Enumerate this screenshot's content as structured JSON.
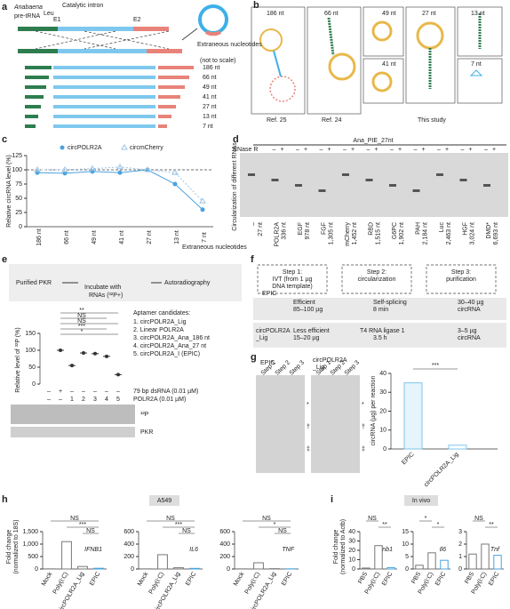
{
  "panel_a": {
    "label": "a",
    "species": "Anabaena",
    "pre_trna": "pre-tRNA",
    "superscript": "Leu",
    "intron": "Catalytic intron",
    "e1": "E1",
    "e2": "E2",
    "extraneous": "Extraneous nucleotides",
    "note": "(not to scale)",
    "lengths": [
      "186 nt",
      "66 nt",
      "49 nt",
      "41 nt",
      "27 nt",
      "13 nt",
      "7 nt"
    ]
  },
  "panel_b": {
    "label": "b",
    "lengths": [
      "186 nt",
      "66 nt",
      "49 nt",
      "41 nt",
      "27 nt",
      "13 nt",
      "7 nt"
    ],
    "refs": [
      "Ref. 25",
      "Ref. 24",
      "This study"
    ]
  },
  "panel_c": {
    "label": "c",
    "chart_data": {
      "type": "line",
      "ylabel": "Relative circRNA level (%)",
      "xnote": "Extraneous nucleotides",
      "categories": [
        "186 nt",
        "66 nt",
        "49 nt",
        "41 nt",
        "27 nt",
        "13 nt",
        "7 nt"
      ],
      "series": [
        {
          "name": "circPOLR2A",
          "color": "#4aa3df",
          "values": [
            95,
            94,
            97,
            95,
            100,
            75,
            30
          ]
        },
        {
          "name": "circmCherry",
          "color": "#9cc4e6",
          "values": [
            100,
            100,
            102,
            105,
            100,
            95,
            45
          ]
        }
      ],
      "ylim": [
        0,
        125
      ],
      "yticks": [
        0,
        25,
        50,
        75,
        100,
        125
      ]
    }
  },
  "panel_d": {
    "label": "d",
    "title": "Ana_PIE_27nt",
    "rnase": "RNase R",
    "ylabel": "Circularization of different RNAs",
    "signs": [
      "–",
      "+"
    ],
    "lanes": [
      [
        "–",
        "27 nt"
      ],
      [
        "POLR2A",
        "336 nt"
      ],
      [
        "EGF",
        "978 nt"
      ],
      [
        "FGF",
        "1,305 nt"
      ],
      [
        "mCherry",
        "1,452 nt"
      ],
      [
        "RBD",
        "1,515 nt"
      ],
      [
        "G6PC",
        "1,902 nt"
      ],
      [
        "PAH",
        "2,184 nt"
      ],
      [
        "Luc",
        "2,463 nt"
      ],
      [
        "HGF",
        "3,024 nt"
      ],
      [
        "DMD*",
        "6,693 nt"
      ]
    ]
  },
  "panel_e": {
    "label": "e",
    "pkr": "Purified PKR",
    "incubate": "Incubate with",
    "rnas": "RNAs (³²P+)",
    "autorad": "Autoradiography",
    "candidates_title": "Aptamer candidates:",
    "candidates": [
      "1. circPOLR2A_Lig",
      "2. Linear POLR2A",
      "3. circPOLR2A_Ana_186 nt",
      "4. circPOLR2A_Ana_27 nt",
      "5. circPOLR2A_I (EPIC)"
    ],
    "rows": [
      {
        "name": "79 bp dsRNA (0.01 µM)",
        "cells": [
          "–",
          "+",
          "–",
          "–",
          "–",
          "–",
          "–"
        ]
      },
      {
        "name": "POLR2A (0.01 µM)",
        "cells": [
          "–",
          "–",
          "1",
          "2",
          "3",
          "4",
          "5"
        ]
      }
    ],
    "blots": [
      "³²P",
      "PKR"
    ],
    "sig": [
      "**",
      "NS",
      "NS",
      "***",
      "*"
    ],
    "chart_data": {
      "type": "scatter",
      "ylabel": "Relative level of ³²P (%)",
      "values": [
        100,
        55,
        92,
        90,
        82,
        28
      ],
      "color": "#333333",
      "ylim": [
        0,
        150
      ],
      "yticks": [
        0,
        50,
        100,
        150
      ]
    }
  },
  "panel_f": {
    "label": "f",
    "steps": [
      [
        "Step 1:",
        "IVT (from 1 µg",
        "DNA template)"
      ],
      [
        "Step 2:",
        "circularization"
      ],
      [
        "Step 3:",
        "purification"
      ]
    ],
    "rows": [
      [
        "EPIC",
        "Efficient",
        "85–100 µg",
        "Self-splicing",
        "8 min",
        "30–40 µg",
        "circRNA"
      ],
      [
        "circPOLR2A",
        "_Lig",
        "Less efficient",
        "15–20 µg",
        "T4 RNA ligase 1",
        "3.5 h",
        "3–5 µg",
        "circRNA"
      ]
    ]
  },
  "panel_g": {
    "label": "g",
    "gels": [
      "EPIC",
      "circPOLR2A",
      "_Lig"
    ],
    "steps": [
      "Step 1",
      "Step 2",
      "Step 3"
    ],
    "marks": [
      "*",
      "†",
      "‡",
      "*",
      "†",
      "‡"
    ],
    "sig": "***",
    "chart_data": {
      "type": "bar",
      "ylabel": "circRNA (µg) per reaction",
      "categories": [
        "EPIC",
        "circPOLR2A_Lig"
      ],
      "values": [
        35,
        2
      ],
      "color": "#7fc4ec",
      "ylim": [
        0,
        40
      ],
      "yticks": [
        0,
        10,
        20,
        30,
        40
      ]
    }
  },
  "panel_h": {
    "label": "h",
    "tag": "A549",
    "ylabel": "Fold change",
    "ylabel2": "(normalized to 18S)",
    "charts": [
      {
        "type": "bar",
        "title": "IFNB1",
        "categories": [
          "Mock",
          "Poly(I:C)",
          "circPOLR2A_Lig",
          "EPIC"
        ],
        "values": [
          5,
          1100,
          100,
          30
        ],
        "ylim": [
          0,
          1500
        ],
        "yticks": [
          0,
          500,
          {
            "value": 1000,
            "label": "1,000"
          },
          {
            "value": 1500,
            "label": "1,500"
          }
        ],
        "sig": [
          "NS",
          "***",
          "NS"
        ]
      },
      {
        "type": "bar",
        "title": "IL6",
        "categories": [
          "Mock",
          "Poly(I:C)",
          "circPOLR2A_Lig",
          "EPIC"
        ],
        "values": [
          2,
          230,
          20,
          10
        ],
        "ylim": [
          0,
          600
        ],
        "yticks": [
          0,
          200,
          400,
          600
        ],
        "sig": [
          "NS",
          "***",
          "NS"
        ]
      },
      {
        "type": "bar",
        "title": "TNF",
        "categories": [
          "Mock",
          "Poly(I:C)",
          "circPOLR2A_Lig",
          "EPIC"
        ],
        "values": [
          2,
          100,
          5,
          3
        ],
        "ylim": [
          0,
          600
        ],
        "yticks": [
          0,
          200,
          400,
          600
        ],
        "sig": [
          "NS",
          "*",
          "NS"
        ]
      }
    ]
  },
  "panel_i": {
    "label": "i",
    "tag": "In vivo",
    "ylabel": "Fold change",
    "ylabel2": "(normalized to Actb)",
    "charts": [
      {
        "type": "bar",
        "title": "Ifnb1",
        "categories": [
          "PBS",
          "Poly(I:C)",
          "EPIC"
        ],
        "values": [
          1,
          25,
          1.5
        ],
        "ylim": [
          0,
          40
        ],
        "yticks": [
          0,
          10,
          20,
          30,
          40
        ],
        "sig": [
          "NS",
          "**"
        ]
      },
      {
        "type": "bar",
        "title": "Il6",
        "categories": [
          "PBS",
          "Poly(I:C)",
          "EPIC"
        ],
        "values": [
          1.5,
          6.5,
          3.5
        ],
        "ylim": [
          0,
          15
        ],
        "yticks": [
          0,
          5,
          10,
          15
        ],
        "sig": [
          "*",
          "*"
        ]
      },
      {
        "type": "bar",
        "title": "Tnf",
        "categories": [
          "PBS",
          "Poly(I:C)",
          "EPIC"
        ],
        "values": [
          1.2,
          2,
          1.1
        ],
        "ylim": [
          0,
          3
        ],
        "yticks": [
          0,
          1,
          2,
          3
        ],
        "sig": [
          "NS",
          "**"
        ]
      }
    ]
  }
}
